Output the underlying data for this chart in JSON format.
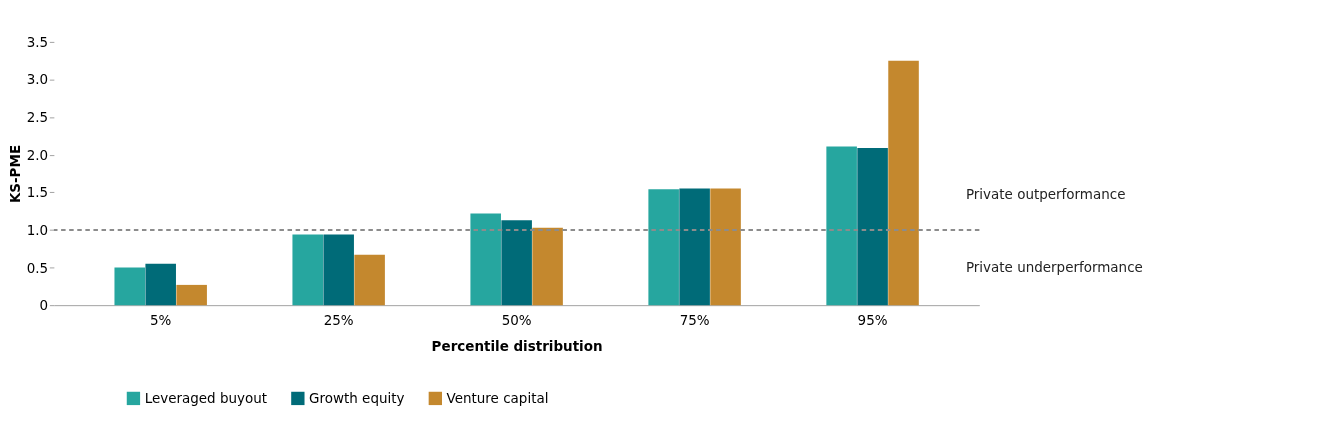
{
  "chart_data": {
    "type": "bar",
    "xlabel": "Percentile distribution",
    "ylabel": "KS-PME",
    "categories": [
      "5%",
      "25%",
      "50%",
      "75%",
      "95%"
    ],
    "series": [
      {
        "name": "Leveraged buyout",
        "color": "#26a69f",
        "values": [
          0.5,
          0.94,
          1.22,
          1.54,
          2.11
        ]
      },
      {
        "name": "Growth equity",
        "color": "#006b78",
        "values": [
          0.55,
          0.94,
          1.13,
          1.55,
          2.09
        ]
      },
      {
        "name": "Venture capital",
        "color": "#c4882e",
        "values": [
          0.27,
          0.67,
          1.03,
          1.55,
          3.25
        ]
      }
    ],
    "ylim": [
      0,
      3.5
    ],
    "yticks": [
      {
        "value": 0,
        "label": "0"
      },
      {
        "value": 0.5,
        "label": "0.5"
      },
      {
        "value": 1,
        "label": "1.0"
      },
      {
        "value": 1.5,
        "label": "1.5"
      },
      {
        "value": 2,
        "label": "2.0"
      },
      {
        "value": 2.5,
        "label": "2.5"
      },
      {
        "value": 3,
        "label": "3.0"
      },
      {
        "value": 3.5,
        "label": "3.5"
      }
    ],
    "ref_lines": [
      {
        "axis": "y",
        "value": 1.0,
        "color": "#8c8c8c",
        "line_style": "dashed"
      }
    ],
    "annotations": [
      "Private outperformance",
      "Private underperformance"
    ],
    "grid": false,
    "legend": "bottom left"
  }
}
